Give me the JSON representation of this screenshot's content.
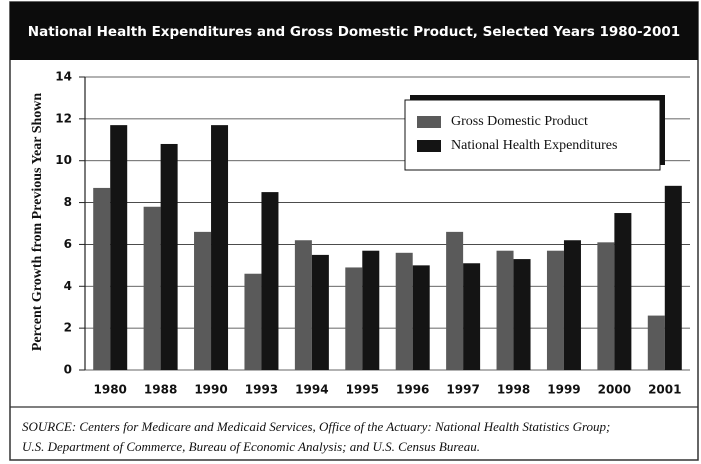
{
  "chart_data": {
    "type": "bar",
    "title": "National Health Expenditures and Gross Domestic Product, Selected Years 1980-2001",
    "y_label": "Percent Growth from Previous Year Shown",
    "categories": [
      "1980",
      "1988",
      "1990",
      "1993",
      "1994",
      "1995",
      "1996",
      "1997",
      "1998",
      "1999",
      "2000",
      "2001"
    ],
    "series": [
      {
        "name": "Gross Domestic Product",
        "color": "#5a5a5a",
        "values": [
          8.7,
          7.8,
          6.6,
          4.6,
          6.2,
          4.9,
          5.6,
          6.6,
          5.7,
          5.7,
          6.1,
          2.6
        ]
      },
      {
        "name": "National Health Expenditures",
        "color": "#141414",
        "values": [
          11.7,
          10.8,
          11.7,
          8.5,
          5.5,
          5.7,
          5.0,
          5.1,
          5.3,
          6.2,
          7.5,
          8.8
        ]
      }
    ],
    "ylim": [
      0,
      14
    ],
    "yticks": [
      0,
      2,
      4,
      6,
      8,
      10,
      12,
      14
    ],
    "grid": true,
    "legend": "upper right",
    "source": [
      "SOURCE: Centers for Medicare and Medicaid Services, Office of the Actuary: National Health Statistics Group;",
      "U.S. Department of Commerce, Bureau of Economic Analysis; and U.S. Census Bureau."
    ]
  }
}
